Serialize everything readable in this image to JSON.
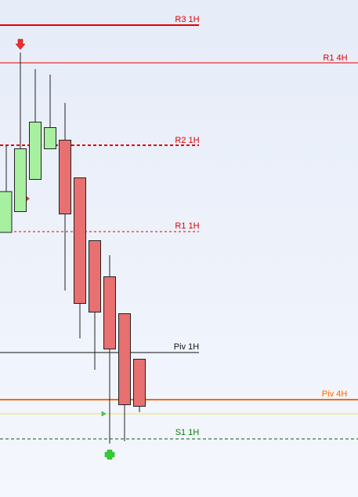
{
  "levels": [
    {
      "label": "R3 1H",
      "color": "#e00000"
    },
    {
      "label": "R1 4H",
      "color": "#e00000"
    },
    {
      "label": "R2 1H",
      "color": "#e00000"
    },
    {
      "label": "R1 1H",
      "color": "#e00000"
    },
    {
      "label": "Piv 1H",
      "color": "#111111"
    },
    {
      "label": "Piv 4H",
      "color": "#ff6600"
    },
    {
      "label": "S1 1H",
      "color": "#0a7a0a"
    }
  ]
}
